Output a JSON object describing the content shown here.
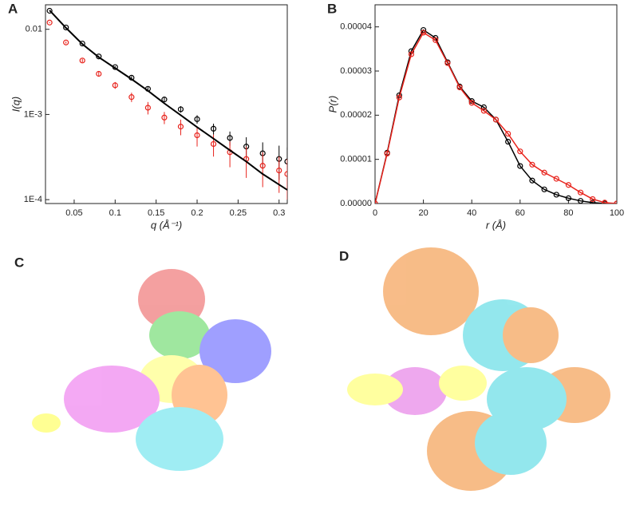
{
  "chart_data": [
    {
      "type": "scatter",
      "panel_label": "A",
      "xlabel": "q (Å⁻¹)",
      "ylabel": "I(q)",
      "ylog": true,
      "xlim": [
        0.015,
        0.31
      ],
      "ylim": [
        9e-05,
        0.0194
      ],
      "xticks": [
        0.05,
        0.1,
        0.15,
        0.2,
        0.25,
        0.3
      ],
      "yticks": [
        {
          "value": 0.0001,
          "label": "1E-4"
        },
        {
          "value": 0.001,
          "label": "1E-3"
        },
        0.01
      ],
      "x": [
        0.02,
        0.04,
        0.06,
        0.08,
        0.1,
        0.12,
        0.14,
        0.16,
        0.18,
        0.2,
        0.22,
        0.24,
        0.26,
        0.28,
        0.3,
        0.31
      ],
      "series": [
        {
          "color": "#000000",
          "marker": "circle",
          "values": [
            0.0165,
            0.0105,
            0.0068,
            0.0048,
            0.0036,
            0.0027,
            0.002,
            0.0015,
            0.00115,
            0.00088,
            0.00068,
            0.00053,
            0.00042,
            0.00035,
            0.0003,
            0.00028
          ],
          "errors": [
            0.0001,
            0.0001,
            0.0001,
            0.0001,
            0.0001,
            0.00012,
            0.0001,
            0.0001,
            0.0001,
            0.0001,
            0.0001,
            0.0001,
            0.00012,
            0.00012,
            0.00013,
            0.00013
          ]
        },
        {
          "color": "#e8231c",
          "marker": "circle",
          "values": [
            0.012,
            0.007,
            0.0043,
            0.003,
            0.0022,
            0.0016,
            0.0012,
            0.00092,
            0.00072,
            0.00057,
            0.00045,
            0.00036,
            0.0003,
            0.00025,
            0.00022,
            0.0002
          ],
          "errors": [
            0.0002,
            0.0002,
            0.0002,
            0.0002,
            0.0002,
            0.0002,
            0.0002,
            0.00015,
            0.00015,
            0.00015,
            0.00013,
            0.00012,
            0.00012,
            0.00011,
            0.0001,
            0.0001
          ]
        },
        {
          "color": "#000000",
          "marker": "line",
          "values": [
            0.0167,
            0.0104,
            0.0067,
            0.0047,
            0.0035,
            0.0026,
            0.0019,
            0.00135,
            0.00098,
            0.00071,
            0.00052,
            0.00038,
            0.00028,
            0.0002,
            0.00015,
            0.00013
          ]
        }
      ]
    },
    {
      "type": "scatter",
      "panel_label": "B",
      "xlabel": "r (Å)",
      "ylabel": "P(r)",
      "ylog": false,
      "xlim": [
        0,
        100
      ],
      "ylim": [
        0,
        4.5e-05
      ],
      "xticks": [
        0,
        20,
        40,
        60,
        80,
        100
      ],
      "yticks": [
        {
          "value": 0,
          "label": "0.00000"
        },
        {
          "value": 1e-05,
          "label": "0.00001"
        },
        {
          "value": 2e-05,
          "label": "0.00002"
        },
        {
          "value": 3e-05,
          "label": "0.00003"
        },
        {
          "value": 4e-05,
          "label": "0.00004"
        }
      ],
      "x": [
        0,
        5,
        10,
        15,
        20,
        25,
        30,
        35,
        40,
        45,
        50,
        55,
        60,
        65,
        70,
        75,
        80,
        85,
        90,
        95,
        100
      ],
      "series": [
        {
          "color": "#000000",
          "marker": "circle",
          "values": [
            0,
            1.15e-05,
            2.45e-05,
            3.45e-05,
            3.93e-05,
            3.75e-05,
            3.2e-05,
            2.65e-05,
            2.32e-05,
            2.18e-05,
            1.9e-05,
            1.4e-05,
            8.5e-06,
            5.2e-06,
            3.2e-06,
            2e-06,
            1.2e-06,
            6e-07,
            2e-07,
            0,
            0
          ]
        },
        {
          "color": "#e8231c",
          "marker": "circle",
          "values": [
            0,
            1.13e-05,
            2.4e-05,
            3.38e-05,
            3.87e-05,
            3.7e-05,
            3.18e-05,
            2.63e-05,
            2.28e-05,
            2.1e-05,
            1.9e-05,
            1.58e-05,
            1.18e-05,
            8.8e-06,
            7e-06,
            5.6e-06,
            4.2e-06,
            2.5e-06,
            1e-06,
            2e-07,
            0
          ]
        }
      ]
    }
  ],
  "panels": [
    "C",
    "D"
  ]
}
